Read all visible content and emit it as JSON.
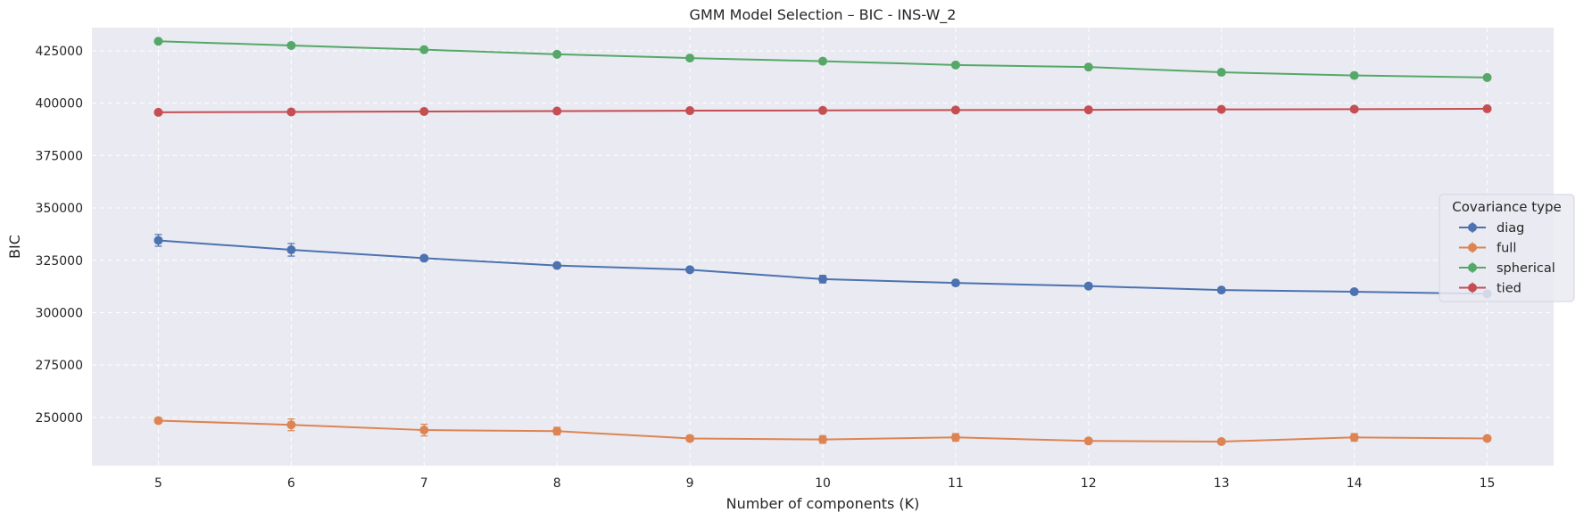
{
  "chart_data": {
    "type": "line",
    "title": "GMM Model Selection – BIC - INS-W_2",
    "xlabel": "Number of components (K)",
    "ylabel": "BIC",
    "x": [
      5,
      6,
      7,
      8,
      9,
      10,
      11,
      12,
      13,
      14,
      15
    ],
    "xlim": [
      4.5,
      15.5
    ],
    "ylim": [
      227000,
      436000
    ],
    "yticks": [
      250000,
      275000,
      300000,
      325000,
      350000,
      375000,
      400000,
      425000
    ],
    "grid": true,
    "grid_style": "dashed",
    "background": "#eaeaf2",
    "legend": {
      "title": "Covariance type",
      "placement": "right"
    },
    "series": [
      {
        "name": "diag",
        "color": "#4c72b0",
        "values": [
          334500,
          330000,
          326000,
          322500,
          320500,
          316000,
          314200,
          312700,
          310800,
          310000,
          309000
        ],
        "errors": [
          2800,
          3000,
          1200,
          1000,
          1000,
          1800,
          1200,
          1200,
          1000,
          1000,
          1000
        ]
      },
      {
        "name": "full",
        "color": "#dd8452",
        "values": [
          248500,
          246500,
          244000,
          243500,
          240000,
          239500,
          240500,
          238800,
          238500,
          240500,
          240000
        ],
        "errors": [
          1200,
          2800,
          2800,
          1800,
          1300,
          1800,
          1800,
          1300,
          1000,
          1800,
          1000
        ]
      },
      {
        "name": "spherical",
        "color": "#55a868",
        "values": [
          429500,
          427500,
          425500,
          423300,
          421500,
          420000,
          418200,
          417200,
          414700,
          413200,
          412200
        ],
        "errors": [
          800,
          800,
          800,
          800,
          800,
          800,
          800,
          800,
          800,
          800,
          800
        ]
      },
      {
        "name": "tied",
        "color": "#c44e52",
        "values": [
          395600,
          395800,
          396000,
          396200,
          396400,
          396500,
          396700,
          396800,
          397000,
          397100,
          397300
        ],
        "errors": [
          600,
          600,
          600,
          600,
          600,
          600,
          600,
          600,
          600,
          600,
          600
        ]
      }
    ]
  }
}
